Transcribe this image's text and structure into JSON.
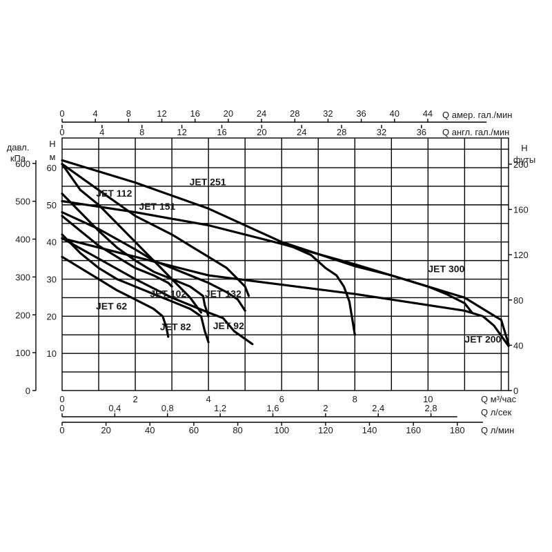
{
  "chart_data": {
    "type": "line",
    "x_axes": {
      "main": {
        "unit": "Q м³/час",
        "ticks": [
          0,
          2,
          4,
          6,
          8,
          10
        ],
        "range": [
          0,
          12.2
        ]
      },
      "ls": {
        "unit": "Q л/сек",
        "ticks": [
          "0",
          "0,4",
          "0,8",
          "1,2",
          "1,6",
          "2",
          "2,4",
          "2,8"
        ]
      },
      "lmin": {
        "unit": "Q л/мин",
        "ticks": [
          0,
          20,
          40,
          60,
          80,
          100,
          120,
          140,
          160,
          180
        ]
      },
      "us_gal": {
        "unit": "Q амер. гал./мин",
        "ticks": [
          0,
          4,
          8,
          12,
          16,
          20,
          24,
          28,
          32,
          36,
          40,
          44
        ]
      },
      "imp_gal": {
        "unit": "Q англ. гал./мин",
        "ticks": [
          0,
          4,
          8,
          12,
          16,
          20,
          24,
          28,
          32,
          36
        ]
      }
    },
    "y_axes": {
      "main": {
        "label": "H",
        "unit": "м",
        "ticks": [
          0,
          10,
          20,
          30,
          40,
          50,
          60
        ],
        "range": [
          0,
          68
        ]
      },
      "kpa": {
        "label": "давл.",
        "unit": "кПа",
        "ticks": [
          0,
          100,
          200,
          300,
          400,
          500,
          600
        ]
      },
      "ft": {
        "label": "H",
        "unit": "футы",
        "ticks": [
          0,
          40,
          80,
          120,
          160,
          200
        ]
      }
    },
    "series": [
      {
        "name": "JET 62",
        "x": [
          0,
          0.5,
          1,
          1.5,
          2,
          2.5,
          2.75,
          2.85,
          2.9
        ],
        "y": [
          36,
          33,
          30,
          27,
          24.5,
          22,
          20,
          17,
          14.5
        ]
      },
      {
        "name": "JET 82",
        "x": [
          0,
          0.5,
          1,
          1.5,
          2,
          2.5,
          3,
          3.5,
          3.8,
          3.9,
          4.0
        ],
        "y": [
          42,
          37,
          33,
          30,
          28,
          26,
          24,
          22,
          20,
          16,
          13
        ]
      },
      {
        "name": "JET 92",
        "x": [
          0,
          2,
          3,
          4,
          4.4,
          4.7,
          5.2
        ],
        "y": [
          41,
          30,
          25,
          21,
          19.5,
          16,
          12.5
        ]
      },
      {
        "name": "JET 102",
        "x": [
          0,
          0.5,
          1,
          1.5,
          2,
          2.5,
          2.9,
          3.0
        ],
        "y": [
          47,
          43,
          39,
          36,
          33,
          31,
          29,
          28
        ]
      },
      {
        "name": "JET 132",
        "x": [
          0,
          0.5,
          1,
          1.5,
          2,
          2.5,
          3,
          3.5,
          3.85,
          3.9,
          4.0
        ],
        "y": [
          53,
          48,
          43,
          38.5,
          35,
          32,
          30,
          28,
          25.5,
          23,
          20
        ]
      },
      {
        "name": "JET 112",
        "x": [
          0,
          0.5,
          1,
          2,
          2.5,
          3,
          3.5,
          3.8
        ],
        "y": [
          61,
          54,
          50,
          40,
          35,
          30,
          25,
          21
        ]
      },
      {
        "name": "JET 151",
        "x": [
          0,
          1,
          2,
          2.5,
          3,
          3.5,
          4,
          4.5,
          4.8,
          5.0
        ],
        "y": [
          48,
          43.5,
          38,
          35,
          33,
          31,
          29,
          26.5,
          24.5,
          21.5
        ]
      },
      {
        "name": "JET 251",
        "x": [
          0,
          1,
          2,
          3,
          3.5,
          4,
          4.5,
          4.8,
          5.0,
          5.1
        ],
        "y": [
          61,
          54,
          47,
          42,
          39,
          36,
          33,
          30,
          28,
          25.5
        ]
      },
      {
        "name": "JET 300",
        "x": [
          0,
          2,
          4,
          6,
          8,
          9,
          10,
          10.5,
          11,
          11.2
        ],
        "y": [
          62,
          56,
          49,
          40,
          33.5,
          31,
          28,
          26,
          23.5,
          21
        ]
      },
      {
        "name": "JET 200",
        "x": [
          0,
          2,
          4,
          6,
          8,
          10,
          11,
          11.5,
          12,
          12.2
        ],
        "y": [
          51,
          48,
          44.5,
          39.5,
          34,
          28,
          25,
          22,
          19,
          12.5
        ]
      },
      {
        "name": "",
        "x": [
          0,
          2,
          4,
          6,
          8,
          10,
          11,
          11.5,
          11.8,
          12.2
        ],
        "y": [
          41,
          36,
          31,
          28.5,
          26,
          23,
          21.5,
          20,
          17.5,
          12
        ]
      },
      {
        "name": "",
        "x": [
          6,
          6.8,
          7.2,
          7.5,
          7.7,
          7.85,
          8.0
        ],
        "y": [
          40,
          36.5,
          33,
          31,
          28,
          24,
          15
        ]
      }
    ],
    "annotations": [
      {
        "text": "JET 62",
        "x": 1.35,
        "y": 21.8
      },
      {
        "text": "JET 82",
        "x": 3.1,
        "y": 16.3
      },
      {
        "text": "JET 92",
        "x": 4.55,
        "y": 16.5
      },
      {
        "text": "JET 102",
        "x": 2.9,
        "y": 25.2
      },
      {
        "text": "JET 132",
        "x": 4.4,
        "y": 25.2
      },
      {
        "text": "JET 112",
        "x": 1.42,
        "y": 52.2
      },
      {
        "text": "JET 151",
        "x": 2.6,
        "y": 48.7
      },
      {
        "text": "JET 251",
        "x": 3.98,
        "y": 55.3
      },
      {
        "text": "JET 300",
        "x": 10.5,
        "y": 31.9
      },
      {
        "text": "JET 200",
        "x": 11.5,
        "y": 12.9
      }
    ],
    "grid": true
  }
}
